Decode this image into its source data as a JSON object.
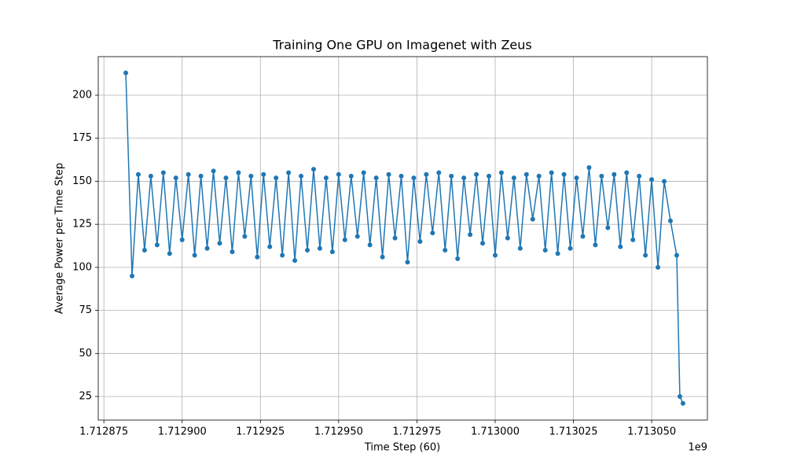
{
  "chart_data": {
    "type": "line",
    "title": "Training One GPU on Imagenet with Zeus",
    "x_label": "Time Step (60)",
    "y_label": "Average Power per Time Step",
    "x_offset_label": "1e9",
    "grid": true,
    "xlim": [
      1.7128732,
      1.7130678
    ],
    "ylim": [
      11.3,
      222.4
    ],
    "xticks": [
      1.712875,
      {
        "value": 1.7129,
        "label": "1.712900"
      },
      1.712925,
      {
        "value": 1.71295,
        "label": "1.712950"
      },
      1.712975,
      {
        "value": 1.713,
        "label": "1.713000"
      },
      1.713025,
      {
        "value": 1.71305,
        "label": "1.713050"
      }
    ],
    "yticks": [
      25,
      50,
      75,
      100,
      125,
      150,
      175,
      200
    ],
    "x": [
      1.712882,
      1.712884,
      1.712886,
      1.712888,
      1.71289,
      1.712892,
      1.712894,
      1.712896,
      1.712898,
      1.7129,
      1.712902,
      1.712904,
      1.712906,
      1.712908,
      1.71291,
      1.712912,
      1.712914,
      1.712916,
      1.712918,
      1.71292,
      1.712922,
      1.712924,
      1.712926,
      1.712928,
      1.71293,
      1.712932,
      1.712934,
      1.712936,
      1.712938,
      1.71294,
      1.712942,
      1.712944,
      1.712946,
      1.712948,
      1.71295,
      1.712952,
      1.712954,
      1.712956,
      1.712958,
      1.71296,
      1.712962,
      1.712964,
      1.712966,
      1.712968,
      1.71297,
      1.712972,
      1.712974,
      1.712976,
      1.712978,
      1.71298,
      1.712982,
      1.712984,
      1.712986,
      1.712988,
      1.71299,
      1.712992,
      1.712994,
      1.712996,
      1.712998,
      1.713,
      1.713002,
      1.713004,
      1.713006,
      1.713008,
      1.71301,
      1.713012,
      1.713014,
      1.713016,
      1.713018,
      1.71302,
      1.713022,
      1.713024,
      1.713026,
      1.713028,
      1.71303,
      1.713032,
      1.713034,
      1.713036,
      1.713038,
      1.71304,
      1.713042,
      1.713044,
      1.713046,
      1.713048,
      1.71305,
      1.713052,
      1.713054,
      1.713056,
      1.713058,
      1.713059,
      1.71306
    ],
    "series": [
      {
        "name": "Average Power",
        "color": "#1f77b4",
        "values": [
          213,
          95,
          154,
          110,
          153,
          113,
          155,
          108,
          152,
          116,
          154,
          107,
          153,
          111,
          156,
          114,
          152,
          109,
          155,
          118,
          153,
          106,
          154,
          112,
          152,
          107,
          155,
          104,
          153,
          110,
          157,
          111,
          152,
          109,
          154,
          116,
          153,
          118,
          155,
          113,
          152,
          106,
          154,
          117,
          153,
          103,
          152,
          115,
          154,
          120,
          155,
          110,
          153,
          105,
          152,
          119,
          154,
          114,
          153,
          107,
          155,
          117,
          152,
          111,
          154,
          128,
          153,
          110,
          155,
          108,
          154,
          111,
          152,
          118,
          158,
          113,
          153,
          123,
          154,
          112,
          155,
          116,
          153,
          107,
          151,
          100,
          150,
          127,
          107,
          25,
          21
        ]
      }
    ]
  }
}
